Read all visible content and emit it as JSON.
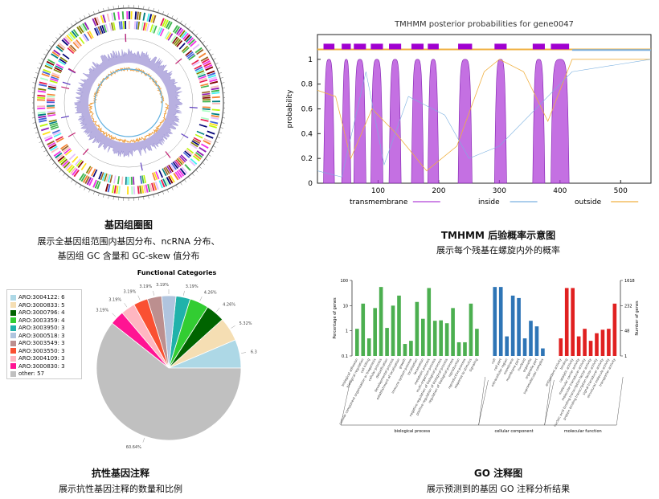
{
  "panels": {
    "genome": {
      "title": "基因组圈图",
      "lines": [
        "展示全基因组范围内基因分布、ncRNA 分布、",
        "基因组 GC 含量和 GC-skew 值分布"
      ]
    },
    "tmhmm": {
      "title": "TMHMM 后验概率示意图",
      "lines": [
        "展示每个残基在螺旋内外的概率"
      ]
    },
    "resistance": {
      "title": "抗性基因注释",
      "lines": [
        "展示抗性基因注释的数量和比例"
      ]
    },
    "go": {
      "title": "GO 注释图",
      "lines": [
        "展示预测到的基因 GO 注释分析结果"
      ]
    }
  },
  "chart_data": [
    {
      "type": "line",
      "title": "TMHMM posterior probabilities for gene0047",
      "ylabel": "probability",
      "xlabel": "",
      "xlim": [
        0,
        550
      ],
      "ylim": [
        0,
        1.2
      ],
      "x_ticks": [
        100,
        200,
        300,
        400,
        500
      ],
      "y_ticks": [
        0,
        0.2,
        0.4,
        0.6,
        0.8,
        1
      ],
      "legend": [
        "transmembrane",
        "inside",
        "outside"
      ],
      "colors": {
        "transmembrane": "#b040d8",
        "inside": "#7ab0e0",
        "outside": "#f0b040"
      },
      "helices": [
        [
          10,
          28
        ],
        [
          40,
          55
        ],
        [
          60,
          80
        ],
        [
          88,
          108
        ],
        [
          118,
          138
        ],
        [
          155,
          175
        ],
        [
          182,
          200
        ],
        [
          232,
          255
        ],
        [
          292,
          312
        ],
        [
          355,
          375
        ],
        [
          385,
          415
        ]
      ]
    },
    {
      "type": "pie",
      "title": "Functional Categories",
      "legend_placement": "left",
      "slices": [
        {
          "label": "ARO:3004122: 6",
          "value": 6,
          "pct": "6.38%",
          "color": "#add8e6"
        },
        {
          "label": "ARO:3000833: 5",
          "value": 5,
          "pct": "5.32%",
          "color": "#f5deb3"
        },
        {
          "label": "ARO:3000796: 4",
          "value": 4,
          "pct": "4.26%",
          "color": "#006400"
        },
        {
          "label": "ARO:3003359: 4",
          "value": 4,
          "pct": "4.26%",
          "color": "#32cd32"
        },
        {
          "label": "ARO:3003950: 3",
          "value": 3,
          "pct": "3.19%",
          "color": "#20b2aa"
        },
        {
          "label": "ARO:3000518: 3",
          "value": 3,
          "pct": "3.19%",
          "color": "#b0c4de"
        },
        {
          "label": "ARO:3003549: 3",
          "value": 3,
          "pct": "3.19%",
          "color": "#bc8f8f"
        },
        {
          "label": "ARO:3003550: 3",
          "value": 3,
          "pct": "3.19%",
          "color": "#fa5032"
        },
        {
          "label": "ARO:3004109: 3",
          "value": 3,
          "pct": "3.19%",
          "color": "#ffb6c1"
        },
        {
          "label": "ARO:3000830: 3",
          "value": 3,
          "pct": "3.19%",
          "color": "#ff1493"
        },
        {
          "label": "other: 57",
          "value": 57,
          "pct": "60.64%",
          "color": "#c0c0c0"
        }
      ]
    },
    {
      "type": "bar",
      "title": "",
      "ylabel": "Percentage of genes",
      "ylabel_right": "Number of genes",
      "yscale": "log",
      "ylim": [
        0.1,
        100
      ],
      "y_ticks": [
        "0.1",
        "1",
        "10",
        "100"
      ],
      "y_ticks_right": [
        "1",
        "48",
        "232",
        "1618"
      ],
      "groups": [
        {
          "name": "biological process",
          "color": "#4caf50",
          "categories": [
            "biological adhesion",
            "biological regulation",
            "cell killing",
            "cellular component organization or biogenesis",
            "cellular process",
            "detoxification",
            "developmental process",
            "establishment of localization",
            "growth",
            "immune system process",
            "localization",
            "locomotion",
            "metabolic process",
            "multi-organism process",
            "negative regulation of biological process",
            "positive regulation of biological process",
            "regulation of biological process",
            "reproduction",
            "reproductive process",
            "response to stimulus",
            "signaling"
          ],
          "values": [
            1.2,
            12,
            0.5,
            8,
            55,
            1.3,
            10,
            25,
            0.3,
            0.4,
            14,
            3,
            50,
            2.5,
            2.6,
            2,
            8,
            0.35,
            0.35,
            12,
            1.2
          ]
        },
        {
          "name": "cellular component",
          "color": "#2e75b6",
          "categories": [
            "cell",
            "cell part",
            "extracellular region",
            "membrane",
            "membrane part",
            "nucleoid",
            "organelle",
            "organelle part",
            "supramolecular complex"
          ],
          "values": [
            55,
            55,
            0.6,
            25,
            20,
            0.5,
            2.5,
            1.5,
            0.2
          ]
        },
        {
          "name": "molecular function",
          "color": "#e02020",
          "categories": [
            "antioxidant activity",
            "binding",
            "catalytic activity",
            "molecular carrier activity",
            "molecular transducer activity",
            "nucleic acid binding transcription factor activity",
            "protein binding transcription factor activity",
            "signal transducer activity",
            "structural molecule activity",
            "transporter activity"
          ],
          "values": [
            0.5,
            50,
            50,
            0.6,
            1.2,
            0.4,
            0.8,
            1.1,
            1.2,
            12
          ]
        }
      ]
    }
  ]
}
